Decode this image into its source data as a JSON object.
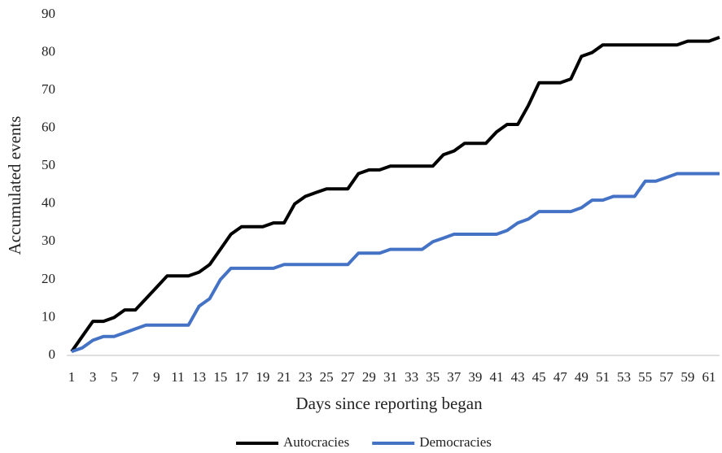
{
  "chart_data": {
    "type": "line",
    "x_label": "Days since reporting began",
    "y_label": "Accumulated events",
    "categories": [
      1,
      null,
      3,
      null,
      5,
      null,
      7,
      null,
      9,
      null,
      11,
      null,
      13,
      null,
      15,
      null,
      17,
      null,
      19,
      null,
      21,
      null,
      23,
      null,
      25,
      null,
      27,
      null,
      29,
      null,
      31,
      null,
      33,
      null,
      35,
      null,
      37,
      null,
      39,
      null,
      41,
      null,
      43,
      null,
      45,
      null,
      47,
      null,
      49,
      null,
      51,
      null,
      53,
      null,
      55,
      null,
      57,
      null,
      59,
      null,
      61,
      null
    ],
    "series": [
      {
        "name": "Autocracies",
        "color": "#000000",
        "values": [
          1,
          5,
          9,
          9,
          10,
          12,
          12,
          15,
          18,
          21,
          21,
          21,
          22,
          24,
          28,
          32,
          34,
          34,
          34,
          35,
          35,
          40,
          42,
          43,
          44,
          44,
          44,
          48,
          49,
          49,
          50,
          50,
          50,
          50,
          50,
          53,
          54,
          56,
          56,
          56,
          59,
          61,
          61,
          66,
          72,
          72,
          72,
          73,
          79,
          80,
          82,
          82,
          82,
          82,
          82,
          82,
          82,
          82,
          83,
          83,
          83,
          84
        ]
      },
      {
        "name": "Democracies",
        "color": "#4472c4",
        "values": [
          1,
          2,
          4,
          5,
          5,
          6,
          7,
          8,
          8,
          8,
          8,
          8,
          13,
          15,
          20,
          23,
          23,
          23,
          23,
          23,
          24,
          24,
          24,
          24,
          24,
          24,
          24,
          27,
          27,
          27,
          28,
          28,
          28,
          28,
          30,
          31,
          32,
          32,
          32,
          32,
          32,
          33,
          35,
          36,
          38,
          38,
          38,
          38,
          39,
          41,
          41,
          42,
          42,
          42,
          46,
          46,
          47,
          48,
          48,
          48,
          48,
          48
        ]
      }
    ],
    "ylim": [
      0,
      90
    ],
    "yticks": [
      0,
      10,
      20,
      30,
      40,
      50,
      60,
      70,
      80,
      90
    ],
    "grid": false,
    "legend": "bottom"
  }
}
